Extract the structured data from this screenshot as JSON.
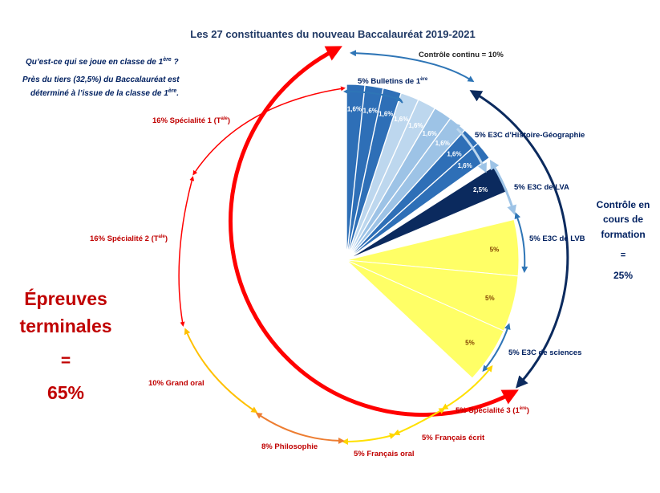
{
  "chart_data": {
    "type": "pie",
    "title": "Les 27 constituantes du nouveau Baccalauréat 2019-2021",
    "intro": {
      "question": "Qu’est-ce qui se joue en classe de 1",
      "question_sup": "ère",
      "question_end": " ?",
      "line1": "Près du tiers (32,5%) du Baccalauréat est",
      "line2": "déterminé à l’issue de la classe de 1",
      "line2_sup": "ère",
      "line2_end": "."
    },
    "slices": [
      {
        "value": 1.6,
        "label": "1,6%",
        "color": "#2e6fb7",
        "exploded": true
      },
      {
        "value": 1.6,
        "label": "1,6%",
        "color": "#2e6fb7",
        "exploded": true
      },
      {
        "value": 1.6,
        "label": "1,6%",
        "color": "#2e6fb7",
        "exploded": true
      },
      {
        "value": 1.6,
        "label": "1,6%",
        "color": "#bdd7ee",
        "exploded": true
      },
      {
        "value": 1.6,
        "label": "1,6%",
        "color": "#bdd7ee",
        "exploded": true
      },
      {
        "value": 1.6,
        "label": "1,6%",
        "color": "#9dc3e6",
        "exploded": true
      },
      {
        "value": 1.6,
        "label": "1,6%",
        "color": "#9dc3e6",
        "exploded": true
      },
      {
        "value": 1.6,
        "label": "1,6%",
        "color": "#2e6fb7",
        "exploded": true
      },
      {
        "value": 1.6,
        "label": "1,6%",
        "color": "#2e6fb7",
        "exploded": true
      },
      {
        "value": 0.8,
        "label": "",
        "color": "#ffffff",
        "exploded": false
      },
      {
        "value": 2.5,
        "label": "2,5%",
        "color": "#0b2a5e",
        "exploded": true
      },
      {
        "value": 2.5,
        "label": "",
        "color": "#ffffff",
        "exploded": false
      },
      {
        "value": 5,
        "label": "5%",
        "color": "#ffff66",
        "exploded": false
      },
      {
        "value": 5,
        "label": "5%",
        "color": "#ffff66",
        "exploded": false
      },
      {
        "value": 5,
        "label": "5%",
        "color": "#ffff66",
        "exploded": false
      },
      {
        "value": 60,
        "label": "",
        "color": "#ffffff",
        "exploded": false
      }
    ],
    "categories": [
      "Contrôle continu = 10%",
      "5% Bulletins de 1",
      "5% E3C d’Histoire-Géographie",
      "5% E3C de LVA",
      "5% E3C de LVB",
      "5% E3C de sciences",
      "5% Spécialité 3 (1",
      "5% Français écrit",
      "5% Français oral",
      "8% Philosophie",
      "10% Grand oral",
      "16% Spécialité 2 (T",
      "16% Spécialité 1 (T"
    ],
    "sups": {
      "ere": "ère",
      "ale": "ale"
    },
    "paren_close": ")",
    "cc_block": [
      "Contrôle en",
      "cours de",
      "formation",
      "=",
      "25%"
    ],
    "et_block": [
      "Épreuves",
      "terminales",
      "=",
      "65%"
    ],
    "colors": {
      "red": "#ff0000",
      "dark_red": "#c00000",
      "navy": "#0b2a5e",
      "steel": "#2e75b6",
      "light_blue": "#bdd7ee",
      "mid_blue": "#9dc3e6",
      "yellow": "#ffff00",
      "orange": "#ffc000",
      "dark_orange": "#ed7d31"
    }
  }
}
